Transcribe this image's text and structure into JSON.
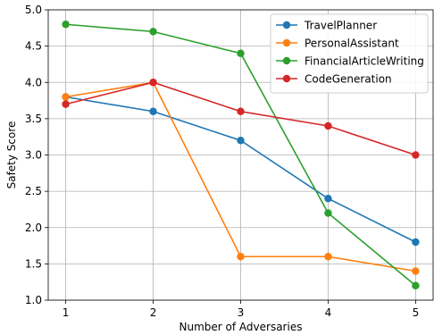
{
  "chart_data": {
    "type": "line",
    "title": "",
    "xlabel": "Number of Adversaries",
    "ylabel": "Safety Score",
    "x": [
      1,
      2,
      3,
      4,
      5
    ],
    "x_ticks": [
      "1",
      "2",
      "3",
      "4",
      "5"
    ],
    "y_ticks": [
      "1.0",
      "1.5",
      "2.0",
      "2.5",
      "3.0",
      "3.5",
      "4.0",
      "4.5",
      "5.0"
    ],
    "ylim": [
      1.0,
      5.0
    ],
    "grid": true,
    "legend_position": "top-right",
    "series": [
      {
        "name": "TravelPlanner",
        "color": "#1f77b4",
        "values": [
          3.8,
          3.6,
          3.2,
          2.4,
          1.8
        ]
      },
      {
        "name": "PersonalAssistant",
        "color": "#ff7f0e",
        "values": [
          3.8,
          4.0,
          1.6,
          1.6,
          1.4
        ]
      },
      {
        "name": "FinancialArticleWriting",
        "color": "#2ca02c",
        "values": [
          4.8,
          4.7,
          4.4,
          2.2,
          1.2
        ]
      },
      {
        "name": "CodeGeneration",
        "color": "#d62728",
        "values": [
          3.7,
          4.0,
          3.6,
          3.4,
          3.0
        ]
      }
    ]
  }
}
